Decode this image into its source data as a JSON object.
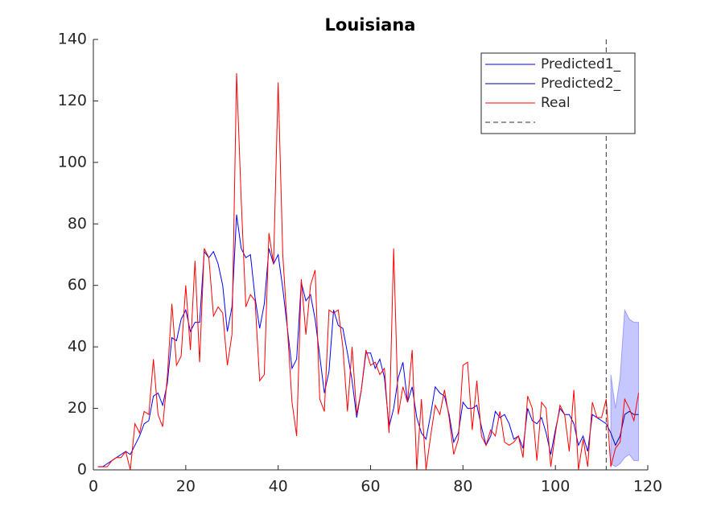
{
  "chart_data": {
    "type": "line",
    "title": "Louisiana",
    "xlim": [
      0,
      120
    ],
    "xticks": [
      0,
      20,
      40,
      60,
      80,
      100,
      120
    ],
    "ylim": [
      0,
      140
    ],
    "yticks": [
      0,
      20,
      40,
      60,
      80,
      100,
      120,
      140
    ],
    "legend": "northeast",
    "series": [
      {
        "name": "Predicted1_",
        "color": "#0000ff",
        "x": [
          1,
          2,
          3,
          4,
          5,
          6,
          7,
          8,
          9,
          10,
          11,
          12,
          13,
          14,
          15,
          16,
          17,
          18,
          19,
          20,
          21,
          22,
          23,
          24,
          25,
          26,
          27,
          28,
          29,
          30,
          31,
          32,
          33,
          34,
          35,
          36,
          37,
          38,
          39,
          40,
          41,
          42,
          43,
          44,
          45,
          46,
          47,
          48,
          49,
          50,
          51,
          52,
          53,
          54,
          55,
          56,
          57,
          58,
          59,
          60,
          61,
          62,
          63,
          64,
          65,
          66,
          67,
          68,
          69,
          70,
          71,
          72,
          73,
          74,
          75,
          76,
          77,
          78,
          79,
          80,
          81,
          82,
          83,
          84,
          85,
          86,
          87,
          88,
          89,
          90,
          91,
          92,
          93,
          94,
          95,
          96,
          97,
          98,
          99,
          100,
          101,
          102,
          103,
          104,
          105,
          106,
          107,
          108,
          109,
          110,
          111
        ],
        "values": [
          1,
          1,
          2,
          3,
          4,
          5,
          6,
          5,
          8,
          11,
          15,
          16,
          24,
          25,
          21,
          28,
          43,
          42,
          49,
          52,
          45,
          48,
          48,
          71,
          69,
          71,
          67,
          60,
          45,
          53,
          83,
          72,
          69,
          70,
          56,
          46,
          54,
          72,
          67,
          70,
          59,
          46,
          33,
          36,
          61,
          55,
          57,
          49,
          37,
          25,
          32,
          52,
          47,
          46,
          38,
          29,
          17,
          26,
          38,
          38,
          33,
          36,
          30,
          14,
          20,
          30,
          35,
          22,
          27,
          17,
          12,
          10,
          18,
          27,
          25,
          24,
          18,
          9,
          12,
          22,
          20,
          20,
          21,
          14,
          8,
          11,
          19,
          17,
          18,
          15,
          10,
          11,
          7,
          20,
          16,
          15,
          17,
          12,
          5,
          13,
          20,
          18,
          18,
          15,
          8,
          11,
          6,
          18,
          17,
          16,
          15
        ]
      },
      {
        "name": "Predicted2_",
        "color": "#0000b0",
        "x": [
          111,
          112,
          113,
          114,
          115,
          116,
          117,
          118
        ],
        "values": [
          15,
          12,
          8,
          11,
          18,
          19,
          18,
          18
        ]
      },
      {
        "name": "Real",
        "color": "#ff0000",
        "x": [
          1,
          2,
          3,
          4,
          5,
          6,
          7,
          8,
          9,
          10,
          11,
          12,
          13,
          14,
          15,
          16,
          17,
          18,
          19,
          20,
          21,
          22,
          23,
          24,
          25,
          26,
          27,
          28,
          29,
          30,
          31,
          32,
          33,
          34,
          35,
          36,
          37,
          38,
          39,
          40,
          41,
          42,
          43,
          44,
          45,
          46,
          47,
          48,
          49,
          50,
          51,
          52,
          53,
          54,
          55,
          56,
          57,
          58,
          59,
          60,
          61,
          62,
          63,
          64,
          65,
          66,
          67,
          68,
          69,
          70,
          71,
          72,
          73,
          74,
          75,
          76,
          77,
          78,
          79,
          80,
          81,
          82,
          83,
          84,
          85,
          86,
          87,
          88,
          89,
          90,
          91,
          92,
          93,
          94,
          95,
          96,
          97,
          98,
          99,
          100,
          101,
          102,
          103,
          104,
          105,
          106,
          107,
          108,
          109,
          110,
          111,
          112,
          113,
          114,
          115,
          116,
          117,
          118
        ],
        "values": [
          1,
          1,
          1,
          3,
          4,
          4,
          6,
          0,
          15,
          12,
          19,
          18,
          36,
          18,
          14,
          30,
          54,
          34,
          37,
          60,
          39,
          68,
          35,
          72,
          69,
          50,
          53,
          51,
          34,
          44,
          129,
          88,
          53,
          57,
          55,
          29,
          31,
          77,
          67,
          126,
          70,
          46,
          22,
          11,
          62,
          44,
          60,
          65,
          23,
          19,
          52,
          51,
          52,
          40,
          19,
          40,
          18,
          26,
          39,
          34,
          35,
          31,
          33,
          12,
          72,
          18,
          27,
          22,
          39,
          0,
          23,
          0,
          11,
          21,
          18,
          26,
          17,
          5,
          10,
          34,
          35,
          13,
          29,
          11,
          8,
          13,
          11,
          19,
          9,
          8,
          9,
          11,
          4,
          24,
          20,
          3,
          22,
          20,
          1,
          12,
          21,
          18,
          6,
          26,
          0,
          10,
          1,
          22,
          17,
          17,
          23,
          1,
          7,
          9,
          23,
          20,
          16,
          25
        ]
      }
    ],
    "interval": {
      "color": "#0000ff",
      "x": [
        112,
        113,
        114,
        115,
        116,
        117,
        118
      ],
      "upper": [
        31,
        20,
        30,
        52,
        49,
        48,
        48
      ],
      "lower": [
        2,
        1,
        2,
        4,
        5,
        3,
        3
      ]
    },
    "vline": 111
  }
}
